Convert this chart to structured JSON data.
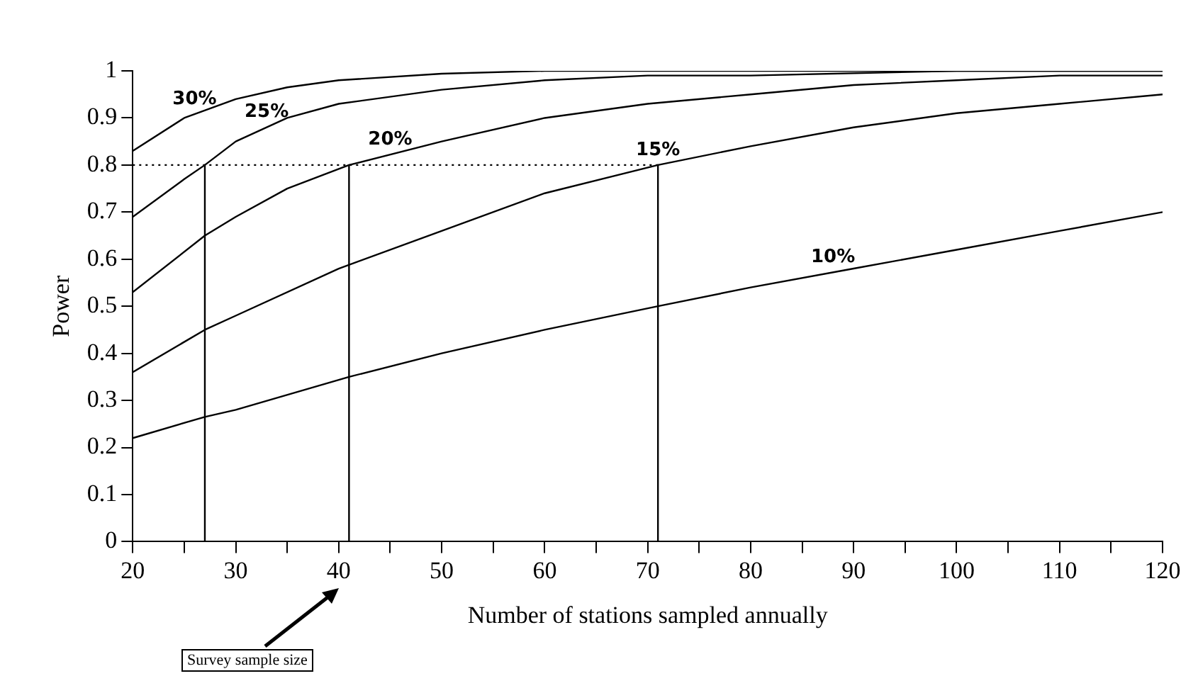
{
  "chart_data": {
    "type": "line",
    "xlabel": "Number of stations sampled annually",
    "ylabel": "Power",
    "xlim": [
      20,
      120
    ],
    "ylim": [
      0,
      1
    ],
    "xticks": [
      20,
      {
        "value": 25,
        "label": null
      },
      30,
      {
        "value": 35,
        "label": null
      },
      40,
      {
        "value": 45,
        "label": null
      },
      50,
      {
        "value": 55,
        "label": null
      },
      60,
      {
        "value": 65,
        "label": null
      },
      70,
      {
        "value": 75,
        "label": null
      },
      80,
      {
        "value": 85,
        "label": null
      },
      90,
      {
        "value": 95,
        "label": null
      },
      100,
      {
        "value": 105,
        "label": null
      },
      110,
      {
        "value": 115,
        "label": null
      },
      120
    ],
    "yticks": [
      0,
      0.1,
      0.2,
      0.3,
      0.4,
      0.5,
      0.6,
      0.7,
      0.8,
      0.9,
      1
    ],
    "grid": false,
    "legend": false,
    "marker": "none",
    "series": [
      {
        "name": "30%",
        "color": "#000000",
        "x": [
          20,
          25,
          30,
          35,
          40,
          50,
          60,
          70,
          80,
          100,
          120
        ],
        "values": [
          0.83,
          0.9,
          0.94,
          0.965,
          0.98,
          0.994,
          1,
          1,
          1,
          1,
          1
        ]
      },
      {
        "name": "25%",
        "color": "#000000",
        "x": [
          20,
          25,
          27,
          30,
          35,
          40,
          50,
          60,
          70,
          80,
          100,
          120
        ],
        "values": [
          0.69,
          0.77,
          0.8,
          0.85,
          0.9,
          0.93,
          0.96,
          0.98,
          0.99,
          0.99,
          1,
          1
        ]
      },
      {
        "name": "20%",
        "color": "#000000",
        "x": [
          20,
          27,
          30,
          35,
          41,
          50,
          60,
          70,
          80,
          90,
          100,
          110,
          120
        ],
        "values": [
          0.53,
          0.65,
          0.69,
          0.75,
          0.8,
          0.85,
          0.9,
          0.93,
          0.95,
          0.97,
          0.98,
          0.99,
          0.99
        ]
      },
      {
        "name": "15%",
        "color": "#000000",
        "x": [
          20,
          27,
          30,
          40,
          50,
          60,
          71,
          80,
          90,
          100,
          110,
          120
        ],
        "values": [
          0.36,
          0.45,
          0.48,
          0.58,
          0.66,
          0.74,
          0.8,
          0.84,
          0.88,
          0.91,
          0.93,
          0.95
        ]
      },
      {
        "name": "10%",
        "color": "#000000",
        "x": [
          20,
          27,
          30,
          41,
          50,
          60,
          71,
          80,
          90,
          100,
          110,
          120
        ],
        "values": [
          0.22,
          0.265,
          0.28,
          0.35,
          0.4,
          0.45,
          0.5,
          0.54,
          0.58,
          0.62,
          0.66,
          0.7
        ]
      },
      {
        "color": "#000000",
        "line_style": "dotted",
        "x": [
          20,
          71
        ],
        "values": [
          0.8,
          0.8
        ]
      },
      {
        "color": "#000000",
        "x": [
          27,
          27
        ],
        "values": [
          0.8,
          0
        ]
      },
      {
        "color": "#000000",
        "x": [
          41,
          41
        ],
        "values": [
          0.8,
          0
        ]
      },
      {
        "color": "#000000",
        "x": [
          71,
          71
        ],
        "values": [
          0.8,
          0
        ]
      }
    ],
    "annotations": [
      "Survey sample size"
    ]
  }
}
